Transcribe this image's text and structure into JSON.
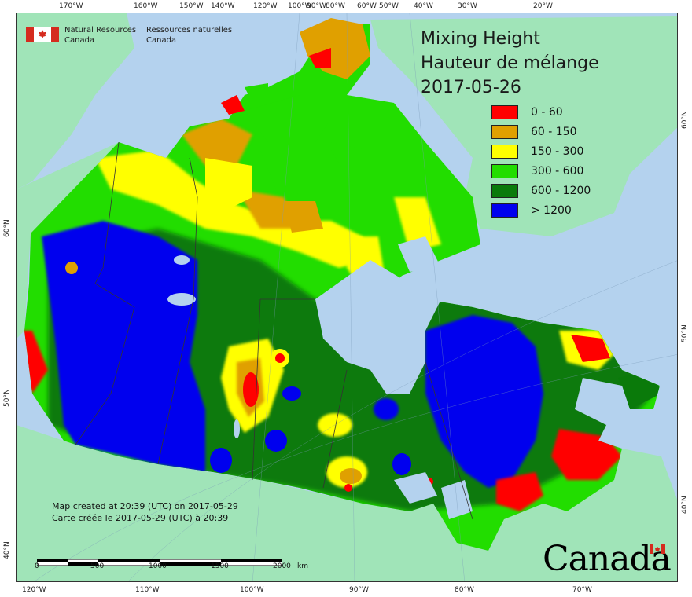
{
  "map": {
    "title": "Mixing Height",
    "title_fr": "Hauteur de mélange",
    "date": "2017-05-26",
    "legend": [
      {
        "label": "0 - 60",
        "color": "#ff0000"
      },
      {
        "label": "60 - 150",
        "color": "#e0a000"
      },
      {
        "label": "150 - 300",
        "color": "#ffff00"
      },
      {
        "label": "300 - 600",
        "color": "#22dd00"
      },
      {
        "label": "600 - 1200",
        "color": "#0a7a0a"
      },
      {
        "label": "> 1200",
        "color": "#0000ee"
      }
    ],
    "colors": {
      "water": "#b4d2ee",
      "land": "#a0e4b8",
      "border": "#333333"
    }
  },
  "agency": {
    "name_en_1": "Natural Resources",
    "name_en_2": "Canada",
    "name_fr_1": "Ressources naturelles",
    "name_fr_2": "Canada"
  },
  "notes": {
    "created_en": "Map created at 20:39 (UTC) on 2017-05-29",
    "created_fr": "Carte créée le 2017-05-29 (UTC) à 20:39"
  },
  "scale_bar": {
    "labels": [
      "0",
      "500",
      "1000",
      "1500",
      "2000"
    ],
    "unit": "km"
  },
  "graticule": {
    "top": [
      "170°W",
      "160°W",
      "150°W",
      "140°W",
      "120°W",
      "100°W",
      "90°W",
      "80°W",
      "60°W",
      "50°W",
      "40°W",
      "30°W",
      "20°W"
    ],
    "bottom": [
      "120°W",
      "110°W",
      "100°W",
      "90°W",
      "80°W",
      "70°W"
    ],
    "left": [
      "60°N",
      "50°N",
      "40°N"
    ],
    "right": [
      "60°N",
      "50°N",
      "40°N"
    ]
  },
  "wordmark": "Canada"
}
